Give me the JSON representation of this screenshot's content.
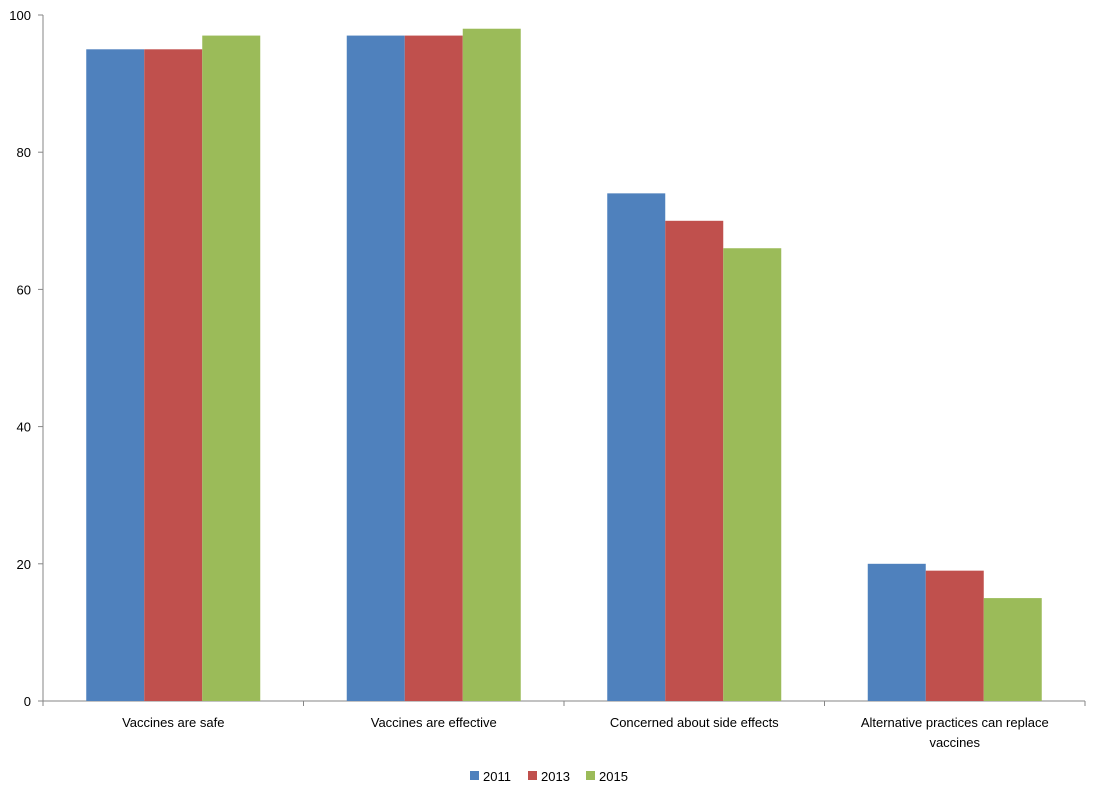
{
  "chart_data": {
    "type": "bar",
    "title": "",
    "xlabel": "",
    "ylabel": "",
    "categories": [
      "Vaccines are safe",
      "Vaccines are effective",
      "Concerned about side effects",
      "Alternative practices can replace vaccines"
    ],
    "category_lines": [
      [
        "Vaccines are safe"
      ],
      [
        "Vaccines are effective"
      ],
      [
        "Concerned about side effects"
      ],
      [
        "Alternative practices can replace",
        "vaccines"
      ]
    ],
    "series": [
      {
        "name": "2011",
        "color": "#4F81BD",
        "values": [
          95,
          97,
          74,
          20
        ]
      },
      {
        "name": "2013",
        "color": "#C0504D",
        "values": [
          95,
          97,
          70,
          19
        ]
      },
      {
        "name": "2015",
        "color": "#9BBB59",
        "values": [
          97,
          98,
          66,
          15
        ]
      }
    ],
    "ylim": [
      0,
      100
    ],
    "yticks": [
      0,
      20,
      40,
      60,
      80,
      100
    ],
    "grid": false,
    "legend": "bottom"
  }
}
